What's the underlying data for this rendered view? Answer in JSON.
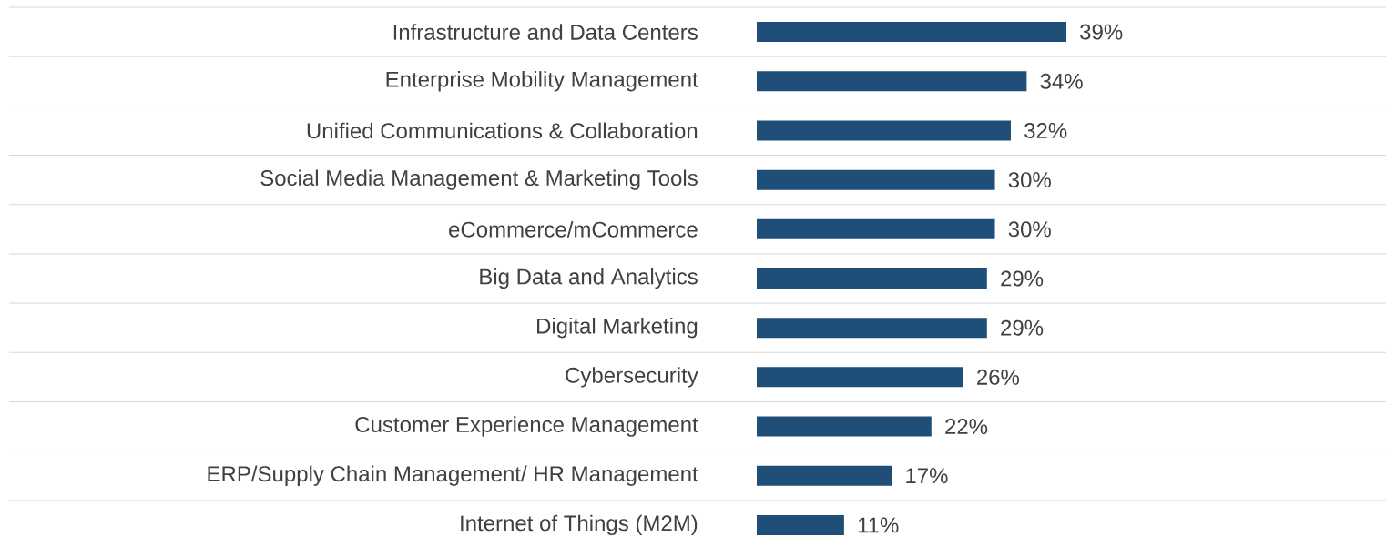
{
  "chart_data": {
    "type": "bar",
    "orientation": "horizontal",
    "categories": [
      "Infrastructure and Data Centers",
      "Enterprise Mobility Management",
      "Unified Communications & Collaboration",
      "Social Media Management & Marketing Tools",
      "eCommerce/mCommerce",
      "Big Data and Analytics",
      "Digital Marketing",
      "Cybersecurity",
      "Customer Experience Management",
      "ERP/Supply Chain Management/ HR Management",
      "Internet of Things (M2M)"
    ],
    "values": [
      39,
      34,
      32,
      30,
      30,
      29,
      29,
      26,
      22,
      17,
      11
    ],
    "value_labels": [
      "39%",
      "34%",
      "32%",
      "30%",
      "30%",
      "29%",
      "29%",
      "26%",
      "22%",
      "17%",
      "11%"
    ],
    "color": "#1f4e79",
    "grid": "y"
  }
}
